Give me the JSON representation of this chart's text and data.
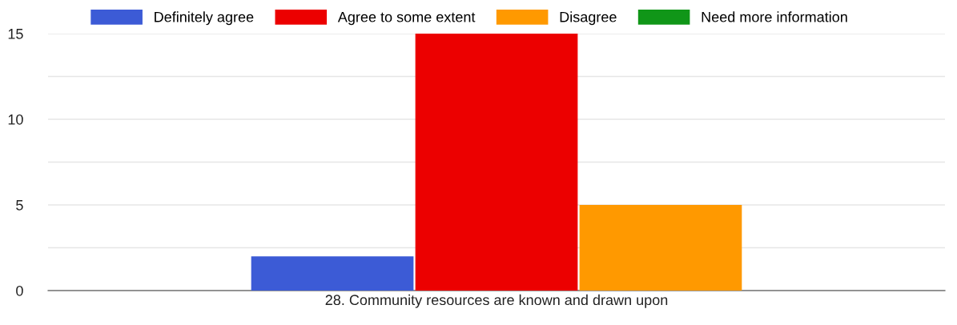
{
  "chart_data": {
    "type": "bar",
    "categories": [
      "28. Community resources are known and drawn upon"
    ],
    "series": [
      {
        "name": "Definitely agree",
        "color": "#3c5bd6",
        "values": [
          2
        ]
      },
      {
        "name": "Agree to some extent",
        "color": "#ec0000",
        "values": [
          15
        ]
      },
      {
        "name": "Disagree",
        "color": "#ff9900",
        "values": [
          5
        ]
      },
      {
        "name": "Need more information",
        "color": "#109618",
        "values": [
          null
        ]
      }
    ],
    "ylim": [
      0,
      15
    ],
    "yticks": [
      0,
      {
        "value": 2.5,
        "label": null
      },
      5,
      {
        "value": 7.5,
        "label": null
      },
      10,
      {
        "value": 12.5,
        "label": null
      },
      15
    ],
    "grid": "y",
    "legend": "top"
  }
}
